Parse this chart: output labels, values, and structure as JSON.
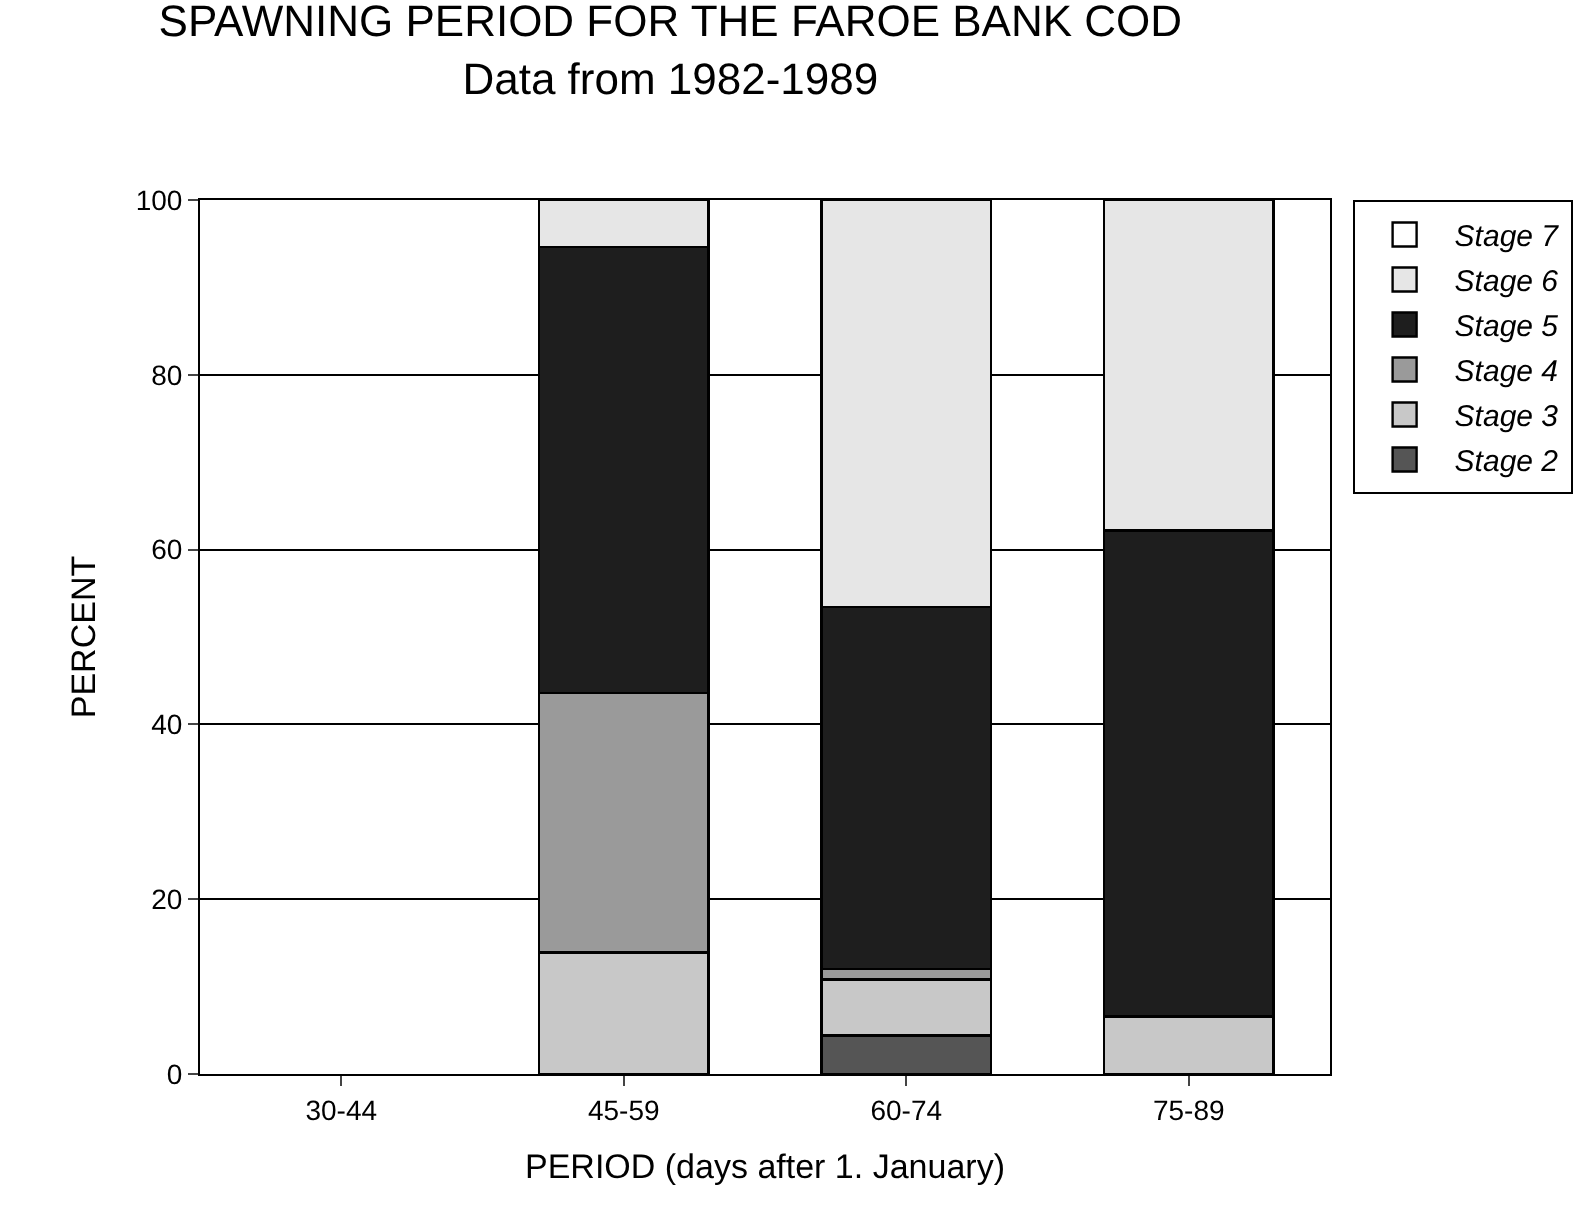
{
  "chart_data": {
    "type": "bar",
    "stacked": true,
    "title": "SPAWNING PERIOD FOR THE FAROE BANK COD",
    "subtitle": "Data from 1982-1989",
    "xlabel": "PERIOD (days after 1. January)",
    "ylabel": "PERCENT",
    "categories": [
      "30-44",
      "45-59",
      "60-74",
      "75-89"
    ],
    "series": [
      {
        "name": "Stage 2",
        "color": "#555555",
        "values": [
          null,
          null,
          4.4,
          null
        ]
      },
      {
        "name": "Stage 3",
        "color": "#c8c8c8",
        "values": [
          null,
          13.9,
          6.4,
          6.6
        ]
      },
      {
        "name": "Stage 4",
        "color": "#9a9a9a",
        "values": [
          null,
          29.7,
          1.2,
          null
        ]
      },
      {
        "name": "Stage 5",
        "color": "#1e1e1e",
        "values": [
          null,
          51,
          41.4,
          55.6
        ]
      },
      {
        "name": "Stage 6",
        "color": "#e6e6e6",
        "values": [
          null,
          5.4,
          46.6,
          37.8
        ]
      },
      {
        "name": "Stage 7",
        "color": "#ffffff",
        "values": [
          null,
          null,
          null,
          null
        ]
      }
    ],
    "ylim": [
      0,
      100
    ],
    "yticks": [
      0,
      20,
      40,
      60,
      80,
      100
    ],
    "grid": "y",
    "legend": "right"
  }
}
